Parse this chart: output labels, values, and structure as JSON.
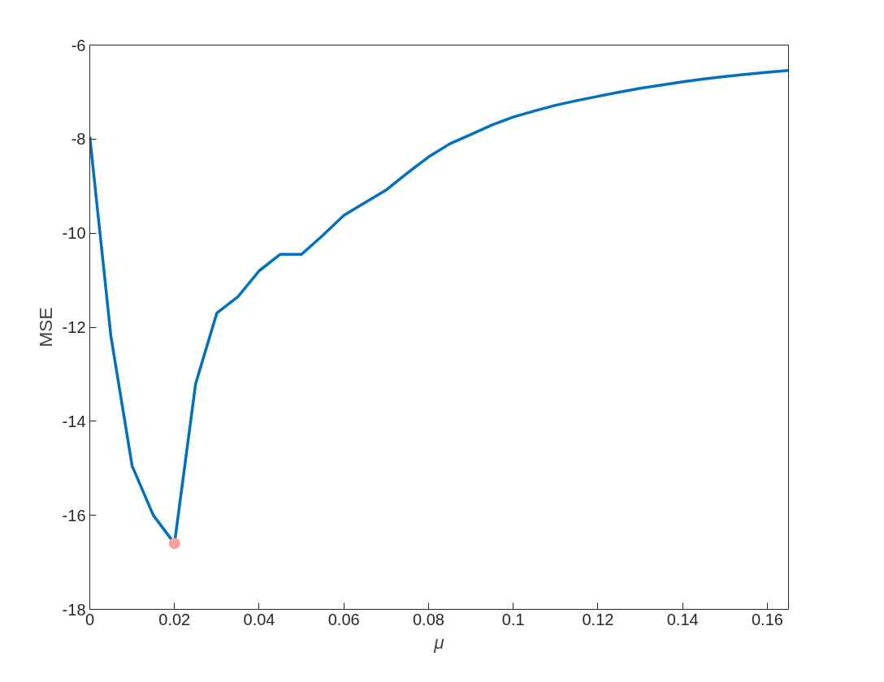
{
  "chart_data": {
    "type": "line",
    "xlabel": "μ",
    "ylabel": "MSE",
    "x": [
      0,
      0.005,
      0.01,
      0.015,
      0.02,
      0.025,
      0.03,
      0.035,
      0.04,
      0.045,
      0.05,
      0.055,
      0.06,
      0.065,
      0.07,
      0.075,
      0.08,
      0.085,
      0.09,
      0.095,
      0.1,
      0.105,
      0.11,
      0.115,
      0.12,
      0.125,
      0.13,
      0.135,
      0.14,
      0.145,
      0.15,
      0.155,
      0.16,
      0.165
    ],
    "series": [
      {
        "color": "#0072bd",
        "values": [
          -7.95,
          -12.2,
          -14.95,
          -16.0,
          -16.6,
          -13.2,
          -11.7,
          -11.35,
          -10.8,
          -10.45,
          -10.45,
          -10.05,
          -9.62,
          -9.35,
          -9.08,
          -8.72,
          -8.38,
          -8.1,
          -7.9,
          -7.7,
          -7.53,
          -7.4,
          -7.28,
          -7.18,
          -7.09,
          -7.0,
          -6.92,
          -6.85,
          -6.78,
          -6.72,
          -6.67,
          -6.62,
          -6.58,
          -6.54
        ]
      },
      {
        "type": "scatter",
        "marker": "circle",
        "color": "#ffa0a0",
        "x": [
          0.02
        ],
        "values": [
          -16.6
        ]
      }
    ],
    "xlim": [
      0,
      0.165
    ],
    "ylim": [
      -18,
      -6
    ],
    "xticks": [
      0,
      0.02,
      0.04,
      0.06,
      0.08,
      0.1,
      0.12,
      0.14,
      0.16
    ],
    "yticks": [
      -18,
      -16,
      -14,
      -12,
      -10,
      -8,
      -6
    ],
    "grid": false,
    "line_style": "solid"
  }
}
